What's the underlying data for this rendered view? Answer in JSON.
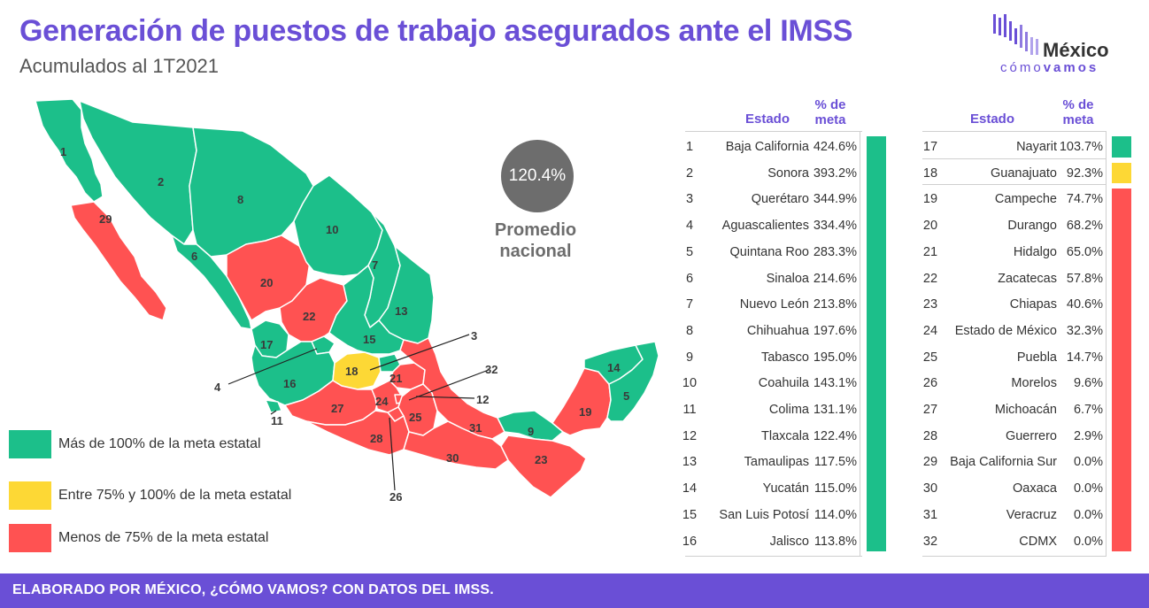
{
  "header": {
    "title": "Generación de puestos de trabajo asegurados ante el IMSS",
    "subtitle": "Acumulados al 1T2021"
  },
  "logo": {
    "main": "México",
    "sub_light": "cómo",
    "sub_bold": "vamos"
  },
  "average": {
    "value": "120.4%",
    "label_line1": "Promedio",
    "label_line2": "nacional"
  },
  "legend": [
    {
      "label": "Más de 100% de la meta estatal",
      "color": "#1cbf8a"
    },
    {
      "label": "Entre 75% y 100% de la meta estatal",
      "color": "#fdd835"
    },
    {
      "label": "Menos de 75% de la meta estatal",
      "color": "#ff5252"
    }
  ],
  "colors": {
    "green": "#1cbf8a",
    "yellow": "#fdd835",
    "red": "#ff5252",
    "accent": "#6a4fd6",
    "gray": "#6d6d6d"
  },
  "table": {
    "header_state": "Estado",
    "header_pct_line1": "% de",
    "header_pct_line2": "meta",
    "rows": [
      {
        "n": "1",
        "state": "Baja California",
        "pct": "424.6%",
        "group": "green"
      },
      {
        "n": "2",
        "state": "Sonora",
        "pct": "393.2%",
        "group": "green"
      },
      {
        "n": "3",
        "state": "Querétaro",
        "pct": "344.9%",
        "group": "green"
      },
      {
        "n": "4",
        "state": "Aguascalientes",
        "pct": "334.4%",
        "group": "green"
      },
      {
        "n": "5",
        "state": "Quintana Roo",
        "pct": "283.3%",
        "group": "green"
      },
      {
        "n": "6",
        "state": "Sinaloa",
        "pct": "214.6%",
        "group": "green"
      },
      {
        "n": "7",
        "state": "Nuevo León",
        "pct": "213.8%",
        "group": "green"
      },
      {
        "n": "8",
        "state": "Chihuahua",
        "pct": "197.6%",
        "group": "green"
      },
      {
        "n": "9",
        "state": "Tabasco",
        "pct": "195.0%",
        "group": "green"
      },
      {
        "n": "10",
        "state": "Coahuila",
        "pct": "143.1%",
        "group": "green"
      },
      {
        "n": "11",
        "state": "Colima",
        "pct": "131.1%",
        "group": "green"
      },
      {
        "n": "12",
        "state": "Tlaxcala",
        "pct": "122.4%",
        "group": "green"
      },
      {
        "n": "13",
        "state": "Tamaulipas",
        "pct": "117.5%",
        "group": "green"
      },
      {
        "n": "14",
        "state": "Yucatán",
        "pct": "115.0%",
        "group": "green"
      },
      {
        "n": "15",
        "state": "San Luis Potosí",
        "pct": "114.0%",
        "group": "green"
      },
      {
        "n": "16",
        "state": "Jalisco",
        "pct": "113.8%",
        "group": "green"
      },
      {
        "n": "17",
        "state": "Nayarit",
        "pct": "103.7%",
        "group": "green"
      },
      {
        "n": "18",
        "state": "Guanajuato",
        "pct": "92.3%",
        "group": "yellow"
      },
      {
        "n": "19",
        "state": "Campeche",
        "pct": "74.7%",
        "group": "red"
      },
      {
        "n": "20",
        "state": "Durango",
        "pct": "68.2%",
        "group": "red"
      },
      {
        "n": "21",
        "state": "Hidalgo",
        "pct": "65.0%",
        "group": "red"
      },
      {
        "n": "22",
        "state": "Zacatecas",
        "pct": "57.8%",
        "group": "red"
      },
      {
        "n": "23",
        "state": "Chiapas",
        "pct": "40.6%",
        "group": "red"
      },
      {
        "n": "24",
        "state": "Estado de México",
        "pct": "32.3%",
        "group": "red"
      },
      {
        "n": "25",
        "state": "Puebla",
        "pct": "14.7%",
        "group": "red"
      },
      {
        "n": "26",
        "state": "Morelos",
        "pct": "9.6%",
        "group": "red"
      },
      {
        "n": "27",
        "state": "Michoacán",
        "pct": "6.7%",
        "group": "red"
      },
      {
        "n": "28",
        "state": "Guerrero",
        "pct": "2.9%",
        "group": "red"
      },
      {
        "n": "29",
        "state": "Baja California Sur",
        "pct": "0.0%",
        "group": "red"
      },
      {
        "n": "30",
        "state": "Oaxaca",
        "pct": "0.0%",
        "group": "red"
      },
      {
        "n": "31",
        "state": "Veracruz",
        "pct": "0.0%",
        "group": "red"
      },
      {
        "n": "32",
        "state": "CDMX",
        "pct": "0.0%",
        "group": "red"
      }
    ]
  },
  "map_labels": [
    "1",
    "2",
    "3",
    "4",
    "5",
    "6",
    "7",
    "8",
    "9",
    "10",
    "11",
    "12",
    "13",
    "14",
    "15",
    "16",
    "17",
    "18",
    "19",
    "20",
    "21",
    "22",
    "23",
    "24",
    "25",
    "26",
    "27",
    "28",
    "29",
    "30",
    "31",
    "32"
  ],
  "footer": {
    "text": "ELABORADO POR MÉXICO, ¿CÓMO VAMOS? CON DATOS DEL IMSS."
  }
}
